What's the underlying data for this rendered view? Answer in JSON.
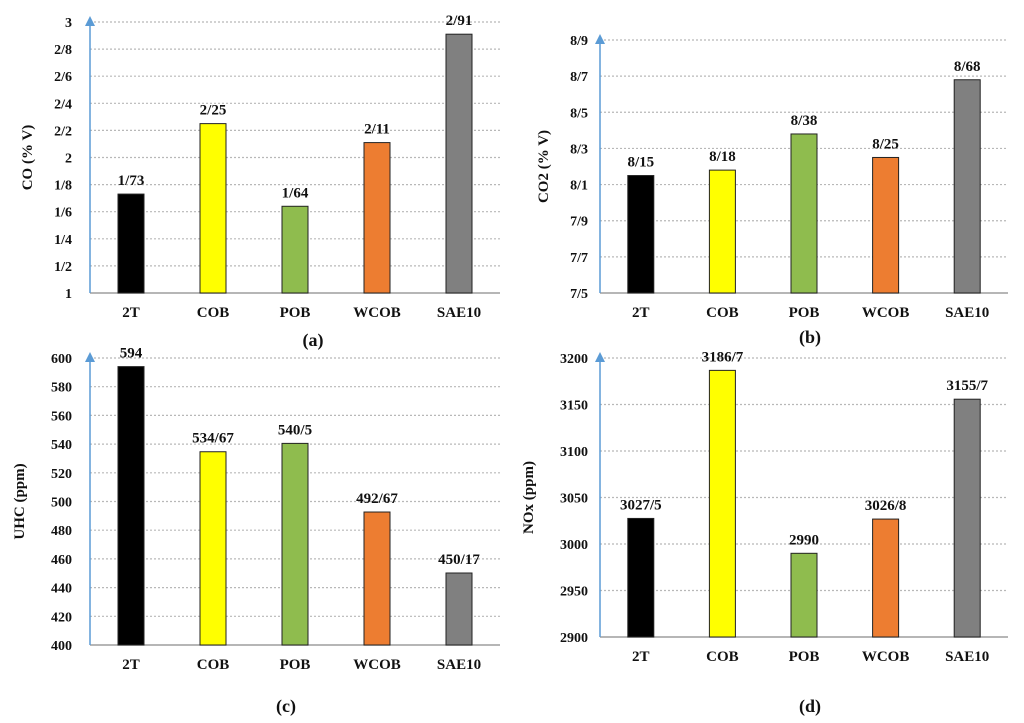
{
  "panel_labels": [
    "(a)",
    "(b)",
    "(c)",
    "(d)"
  ],
  "chart_data": [
    {
      "type": "bar",
      "ylabel": "CO (% V)",
      "categories": [
        "2T",
        "COB",
        "POB",
        "WCOB",
        "SAE10"
      ],
      "values": [
        1.73,
        2.25,
        1.64,
        2.11,
        2.91
      ],
      "value_labels": [
        "1/73",
        "2/25",
        "1/64",
        "2/11",
        "2/91"
      ],
      "ylim": [
        1,
        3
      ],
      "ytick_values": [
        1,
        1.2,
        1.4,
        1.6,
        1.8,
        2,
        2.2,
        2.4,
        2.6,
        2.8,
        3
      ],
      "ytick_labels": [
        "1",
        "1/2",
        "1/4",
        "1/6",
        "1/8",
        "2",
        "2/2",
        "2/4",
        "2/6",
        "2/8",
        "3"
      ],
      "grid": true,
      "colors": [
        "#000000",
        "#ffff00",
        "#8fbc4e",
        "#ed7d31",
        "#808080"
      ]
    },
    {
      "type": "bar",
      "ylabel": "CO2 (% V)",
      "categories": [
        "2T",
        "COB",
        "POB",
        "WCOB",
        "SAE10"
      ],
      "values": [
        8.15,
        8.18,
        8.38,
        8.25,
        8.68
      ],
      "value_labels": [
        "8/15",
        "8/18",
        "8/38",
        "8/25",
        "8/68"
      ],
      "ylim": [
        7.5,
        8.9
      ],
      "ytick_values": [
        7.5,
        7.7,
        7.9,
        8.1,
        8.3,
        8.5,
        8.7,
        8.9
      ],
      "ytick_labels": [
        "7/5",
        "7/7",
        "7/9",
        "8/1",
        "8/3",
        "8/5",
        "8/7",
        "8/9"
      ],
      "grid": true,
      "colors": [
        "#000000",
        "#ffff00",
        "#8fbc4e",
        "#ed7d31",
        "#808080"
      ]
    },
    {
      "type": "bar",
      "ylabel": "UHC (ppm)",
      "categories": [
        "2T",
        "COB",
        "POB",
        "WCOB",
        "SAE10"
      ],
      "values": [
        594,
        534.67,
        540.5,
        492.67,
        450.17
      ],
      "value_labels": [
        "594",
        "534/67",
        "540/5",
        "492/67",
        "450/17"
      ],
      "ylim": [
        400,
        600
      ],
      "ytick_values": [
        400,
        420,
        440,
        460,
        480,
        500,
        520,
        540,
        560,
        580,
        600
      ],
      "ytick_labels": [
        "400",
        "420",
        "440",
        "460",
        "480",
        "500",
        "520",
        "540",
        "560",
        "580",
        "600"
      ],
      "grid": true,
      "colors": [
        "#000000",
        "#ffff00",
        "#8fbc4e",
        "#ed7d31",
        "#808080"
      ]
    },
    {
      "type": "bar",
      "ylabel": "NOx (ppm)",
      "categories": [
        "2T",
        "COB",
        "POB",
        "WCOB",
        "SAE10"
      ],
      "values": [
        3027.5,
        3186.7,
        2990,
        3026.8,
        3155.7
      ],
      "value_labels": [
        "3027/5",
        "3186/7",
        "2990",
        "3026/8",
        "3155/7"
      ],
      "ylim": [
        2900,
        3200
      ],
      "ytick_values": [
        2900,
        2950,
        3000,
        3050,
        3100,
        3150,
        3200
      ],
      "ytick_labels": [
        "2900",
        "2950",
        "3000",
        "3050",
        "3100",
        "3150",
        "3200"
      ],
      "grid": true,
      "colors": [
        "#000000",
        "#ffff00",
        "#8fbc4e",
        "#ed7d31",
        "#808080"
      ]
    }
  ]
}
